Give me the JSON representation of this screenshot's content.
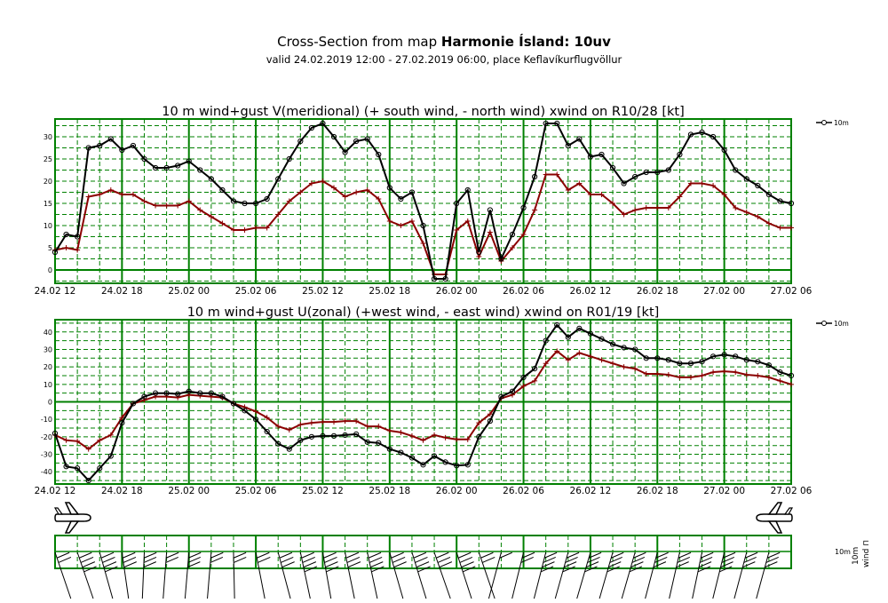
{
  "header": {
    "title_prefix": "Cross-Section from map ",
    "title_bold": "Harmonie Ísland: 10uv",
    "subtitle": "valid 24.02.2019 12:00 - 27.02.2019 06:00, place Keflavíkurflugvöllur"
  },
  "x_labels": [
    "24.02 12",
    "24.02 18",
    "25.02 00",
    "25.02 06",
    "25.02 12",
    "25.02 18",
    "26.02 00",
    "26.02 06",
    "26.02 12",
    "26.02 18",
    "27.02 00",
    "27.02 06"
  ],
  "colors": {
    "grid": "#008000",
    "series_10m": "#000000",
    "series_gust": "#8b0000"
  },
  "legend_label": "10m",
  "chart_data": [
    {
      "type": "line",
      "title": "10 m wind+gust V(meridional) (+ south wind, - north wind) xwind on R10/28 [kt]",
      "x_unit": "hours from 24.02 12",
      "x": [
        0,
        1,
        2,
        3,
        4,
        5,
        6,
        7,
        8,
        9,
        10,
        11,
        12,
        13,
        14,
        15,
        16,
        17,
        18,
        19,
        20,
        21,
        22,
        23,
        24,
        25,
        26,
        27,
        28,
        29,
        30,
        31,
        32,
        33,
        34,
        35,
        36,
        37,
        38,
        39,
        40,
        41,
        42,
        43,
        44,
        45,
        46,
        47,
        48,
        49,
        50,
        51,
        52,
        53,
        54,
        55,
        56,
        57,
        58,
        59,
        60,
        61,
        62,
        63,
        64,
        65,
        66
      ],
      "ylim": [
        -3,
        34
      ],
      "yticks": [
        0,
        5,
        10,
        15,
        20,
        25,
        30
      ],
      "grid": true,
      "series": [
        {
          "name": "10m",
          "marker": "circle",
          "values": [
            4,
            8,
            7.5,
            27.5,
            28,
            29.5,
            27,
            28,
            25,
            23,
            23,
            23.5,
            24.5,
            22.5,
            20.5,
            18,
            15.5,
            15,
            15,
            16,
            20.5,
            25,
            29,
            32,
            33,
            30,
            26.5,
            29,
            29.5,
            26,
            18.5,
            16,
            17.5,
            10,
            -2,
            -2,
            15,
            18,
            4,
            13.5,
            2.5,
            8,
            14,
            21,
            33,
            33,
            28,
            29.5,
            25.5,
            26,
            23,
            19.5,
            21,
            22,
            22,
            22.5,
            26,
            30.5,
            31,
            30,
            27,
            22.5,
            20.5,
            19,
            17,
            15.5,
            15
          ]
        },
        {
          "name": "gust",
          "marker": "plus",
          "values": [
            4.5,
            5,
            4.5,
            16.5,
            17,
            18,
            17,
            17,
            15.5,
            14.5,
            14.5,
            14.5,
            15.5,
            13.5,
            12,
            10.5,
            9,
            9,
            9.5,
            9.5,
            12.5,
            15.5,
            17.5,
            19.5,
            20,
            18.5,
            16.5,
            17.5,
            18,
            16,
            11,
            10,
            11,
            6,
            -1,
            -1,
            9,
            11,
            3,
            8.5,
            2,
            5,
            8,
            13.5,
            21.5,
            21.5,
            18,
            19.5,
            17,
            17,
            15,
            12.5,
            13.5,
            14,
            14,
            14,
            16.5,
            19.5,
            19.5,
            19,
            17,
            14,
            13,
            12,
            10.5,
            9.5,
            9.5
          ]
        }
      ]
    },
    {
      "type": "line",
      "title": "10 m wind+gust U(zonal) (+west wind, - east wind) xwind on R01/19 [kt]",
      "x_unit": "hours from 24.02 12",
      "x": [
        0,
        1,
        2,
        3,
        4,
        5,
        6,
        7,
        8,
        9,
        10,
        11,
        12,
        13,
        14,
        15,
        16,
        17,
        18,
        19,
        20,
        21,
        22,
        23,
        24,
        25,
        26,
        27,
        28,
        29,
        30,
        31,
        32,
        33,
        34,
        35,
        36,
        37,
        38,
        39,
        40,
        41,
        42,
        43,
        44,
        45,
        46,
        47,
        48,
        49,
        50,
        51,
        52,
        53,
        54,
        55,
        56,
        57,
        58,
        59,
        60,
        61,
        62,
        63,
        64,
        65,
        66
      ],
      "ylim": [
        -47,
        47
      ],
      "yticks": [
        -40,
        -30,
        -20,
        -10,
        0,
        10,
        20,
        30,
        40
      ],
      "grid": true,
      "series": [
        {
          "name": "10m",
          "marker": "circle",
          "values": [
            -18,
            -37,
            -38,
            -45,
            -38,
            -31,
            -12,
            -1,
            3,
            5,
            5,
            4.5,
            6,
            5,
            5,
            3,
            -1,
            -5,
            -10,
            -17,
            -24,
            -27,
            -22,
            -20,
            -19.5,
            -19.5,
            -19,
            -18.5,
            -23,
            -23.5,
            -27,
            -29,
            -32,
            -36,
            -31,
            -34.5,
            -36.5,
            -36,
            -20,
            -11,
            3,
            6,
            14,
            19,
            35,
            44,
            37,
            42,
            39,
            36,
            33,
            31,
            30,
            25,
            25,
            24,
            22,
            22,
            23,
            26,
            27,
            26,
            24,
            23,
            21,
            17,
            15
          ]
        },
        {
          "name": "gust",
          "marker": "plus",
          "values": [
            -19,
            -22,
            -22.5,
            -27,
            -22,
            -19,
            -9,
            -1,
            1,
            3,
            3,
            2.5,
            4,
            3.5,
            3,
            2.5,
            -1,
            -3,
            -5.5,
            -9,
            -14,
            -16,
            -13,
            -12,
            -11.5,
            -11.5,
            -11,
            -11,
            -14,
            -14,
            -16.5,
            -17.5,
            -19.5,
            -22,
            -19,
            -20.5,
            -21.5,
            -21.5,
            -12,
            -7,
            2,
            4,
            9,
            12,
            22,
            29,
            24,
            28,
            26,
            24,
            22,
            20,
            19,
            16,
            16,
            15.5,
            14,
            14,
            15,
            17,
            17.5,
            17,
            15.5,
            15,
            14,
            12,
            10
          ]
        }
      ]
    }
  ]
}
